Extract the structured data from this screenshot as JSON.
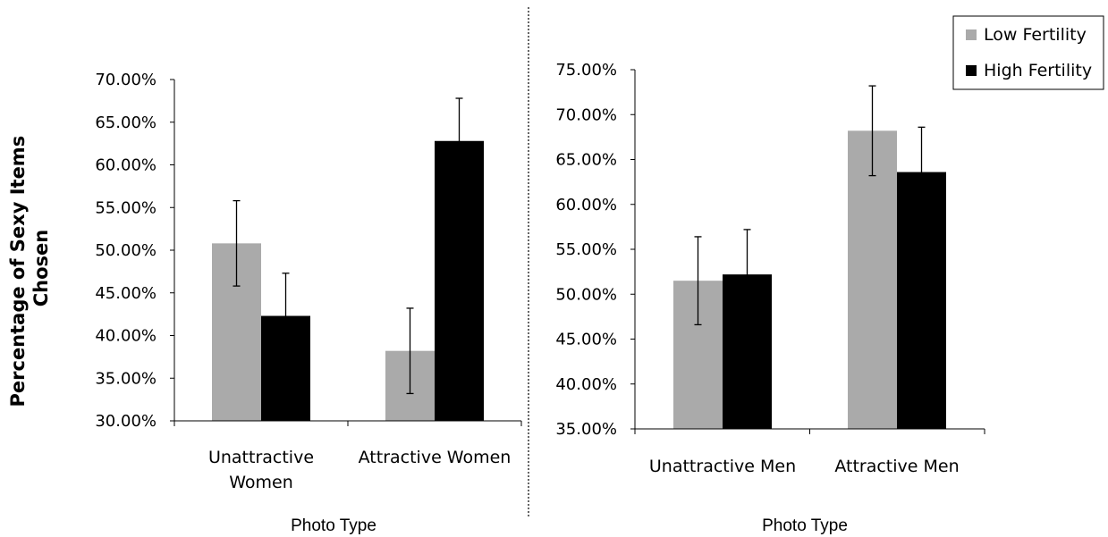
{
  "colors": {
    "low_fertility": "#aaaaaa",
    "high_fertility": "#000000"
  },
  "chart_data": [
    {
      "type": "bar",
      "title": "",
      "categories": [
        "Unattractive Women",
        "Attractive Women"
      ],
      "category_lines": [
        [
          "Unattractive",
          "Women"
        ],
        [
          "Attractive Women"
        ]
      ],
      "xlabel": "Photo Type",
      "ylabel": "Percentage of Sexy Items Chosen",
      "ylabel_lines": [
        "Percentage of Sexy Items",
        "Chosen"
      ],
      "ylim": [
        0.3,
        0.7
      ],
      "yticks": [
        0.3,
        0.35,
        0.4,
        0.45,
        0.5,
        0.55,
        0.6,
        0.65,
        0.7
      ],
      "ytick_labels": [
        "30.00%",
        "35.00%",
        "40.00%",
        "45.00%",
        "50.00%",
        "55.00%",
        "60.00%",
        "65.00%",
        "70.00%"
      ],
      "grid": false,
      "series": [
        {
          "name": "Low Fertility",
          "values": [
            0.508,
            0.382
          ],
          "error": [
            0.05,
            0.05
          ]
        },
        {
          "name": "High Fertility",
          "values": [
            0.423,
            0.628
          ],
          "error": [
            0.05,
            0.05
          ]
        }
      ]
    },
    {
      "type": "bar",
      "title": "",
      "categories": [
        "Unattractive Men",
        "Attractive Men"
      ],
      "category_lines": [
        [
          "Unattractive Men"
        ],
        [
          "Attractive Men"
        ]
      ],
      "xlabel": "Photo Type",
      "ylabel": "",
      "ylim": [
        0.35,
        0.75
      ],
      "yticks": [
        0.35,
        0.4,
        0.45,
        0.5,
        0.55,
        0.6,
        0.65,
        0.7,
        0.75
      ],
      "ytick_labels": [
        "35.00%",
        "40.00%",
        "45.00%",
        "50.00%",
        "55.00%",
        "60.00%",
        "65.00%",
        "70.00%",
        "75.00%"
      ],
      "grid": false,
      "series": [
        {
          "name": "Low Fertility",
          "values": [
            0.515,
            0.682
          ],
          "error": [
            0.049,
            0.05
          ]
        },
        {
          "name": "High Fertility",
          "values": [
            0.522,
            0.636
          ],
          "error": [
            0.05,
            0.05
          ]
        }
      ]
    }
  ],
  "legend": {
    "placement": "top-right",
    "items": [
      {
        "label": "Low Fertility",
        "color": "#aaaaaa"
      },
      {
        "label": "High Fertility",
        "color": "#000000"
      }
    ]
  }
}
